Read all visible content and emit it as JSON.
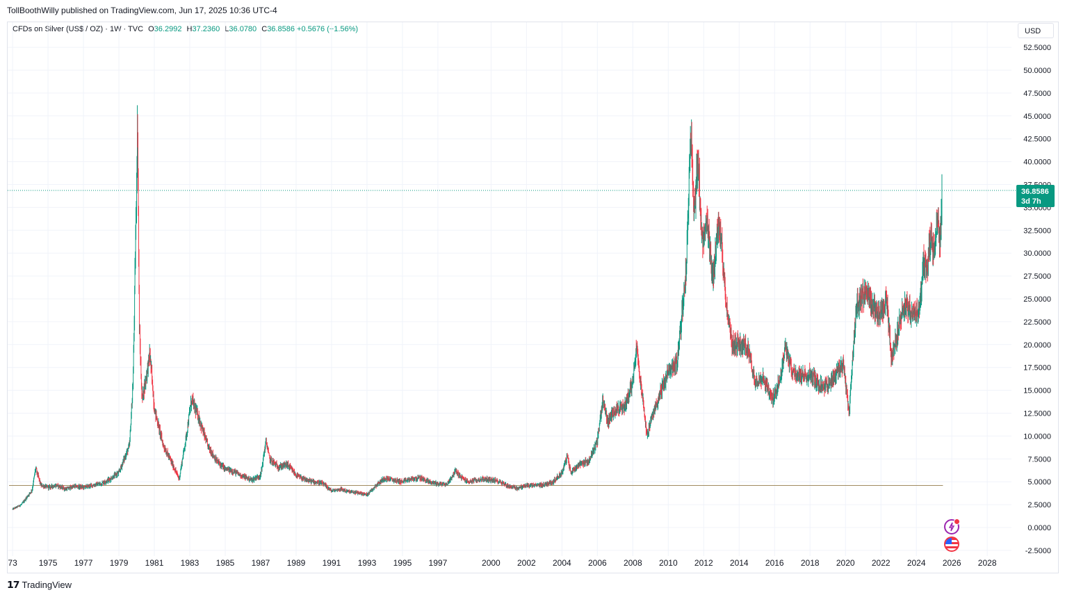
{
  "header": {
    "publisher": "TollBoothWilly published on TradingView.com, Jun 17, 2025 10:36 UTC-4"
  },
  "legend": {
    "symbol": "CFDs on Silver (US$ / OZ) · 1W · TVC",
    "open_label": "O",
    "open": "36.2992",
    "high_label": "H",
    "high": "37.2360",
    "low_label": "L",
    "low": "36.0780",
    "close_label": "C",
    "close": "36.8586",
    "change": "+0.5676 (+1.56%)"
  },
  "currency_button": "USD",
  "price_tag": {
    "price": "36.8586",
    "countdown": "3d 7h"
  },
  "footer": {
    "brand": "TradingView",
    "logo_icon": "tradingview-logo-icon"
  },
  "colors": {
    "up": "#089981",
    "down": "#f23645",
    "support": "#a08a60",
    "grid": "#f0f3fa"
  },
  "icons": [
    "lightning-event-icon",
    "us-flag-event-icon"
  ],
  "chart_data": {
    "type": "candlestick",
    "symbol": "CFDs on Silver (US$ / OZ)",
    "interval": "1W",
    "x_range": [
      1972.8,
      2028.7
    ],
    "ylim": [
      -3.2,
      54.0
    ],
    "y_ticks": [
      "52.5000",
      "50.0000",
      "47.5000",
      "45.0000",
      "42.5000",
      "40.0000",
      "37.5000",
      "35.0000",
      "32.5000",
      "30.0000",
      "27.5000",
      "25.0000",
      "22.5000",
      "20.0000",
      "17.5000",
      "15.0000",
      "12.5000",
      "10.0000",
      "7.5000",
      "5.0000",
      "2.5000",
      "0.0000",
      "-2.5000"
    ],
    "x_ticks": [
      "73",
      "1975",
      "1977",
      "1979",
      "1981",
      "1983",
      "1985",
      "1987",
      "1989",
      "1991",
      "1993",
      "1995",
      "1997",
      "2000",
      "2002",
      "2004",
      "2006",
      "2008",
      "2010",
      "2012",
      "2014",
      "2016",
      "2018",
      "2020",
      "2022",
      "2024",
      "2026",
      "2028"
    ],
    "current_price": 36.8586,
    "support_level": 4.6,
    "support_range": [
      1972.8,
      2025.5
    ],
    "grid": true,
    "price_series": [
      [
        1973.0,
        2.0
      ],
      [
        1973.5,
        2.5
      ],
      [
        1974.1,
        4.1
      ],
      [
        1974.3,
        6.5
      ],
      [
        1974.6,
        4.6
      ],
      [
        1975.0,
        4.4
      ],
      [
        1975.5,
        4.6
      ],
      [
        1976.0,
        4.2
      ],
      [
        1976.5,
        4.5
      ],
      [
        1977.0,
        4.4
      ],
      [
        1977.5,
        4.6
      ],
      [
        1978.0,
        4.8
      ],
      [
        1978.5,
        5.3
      ],
      [
        1979.0,
        6.0
      ],
      [
        1979.3,
        7.5
      ],
      [
        1979.6,
        9.0
      ],
      [
        1979.8,
        16.0
      ],
      [
        1980.0,
        38.0
      ],
      [
        1980.05,
        45.0
      ],
      [
        1980.15,
        22.0
      ],
      [
        1980.3,
        14.0
      ],
      [
        1980.5,
        16.0
      ],
      [
        1980.75,
        19.0
      ],
      [
        1981.0,
        13.0
      ],
      [
        1981.5,
        9.0
      ],
      [
        1982.0,
        7.0
      ],
      [
        1982.4,
        5.3
      ],
      [
        1982.8,
        10.0
      ],
      [
        1983.1,
        14.0
      ],
      [
        1983.5,
        12.0
      ],
      [
        1984.0,
        9.0
      ],
      [
        1984.5,
        7.3
      ],
      [
        1985.0,
        6.4
      ],
      [
        1985.5,
        6.1
      ],
      [
        1986.0,
        5.6
      ],
      [
        1986.5,
        5.2
      ],
      [
        1987.0,
        5.7
      ],
      [
        1987.3,
        9.5
      ],
      [
        1987.5,
        7.5
      ],
      [
        1988.0,
        6.6
      ],
      [
        1988.5,
        6.9
      ],
      [
        1989.0,
        5.7
      ],
      [
        1989.5,
        5.2
      ],
      [
        1990.0,
        5.0
      ],
      [
        1990.5,
        4.8
      ],
      [
        1991.0,
        4.0
      ],
      [
        1991.5,
        4.2
      ],
      [
        1992.0,
        3.9
      ],
      [
        1992.5,
        3.8
      ],
      [
        1993.0,
        3.6
      ],
      [
        1993.5,
        4.6
      ],
      [
        1994.0,
        5.4
      ],
      [
        1994.5,
        5.2
      ],
      [
        1995.0,
        5.0
      ],
      [
        1995.5,
        5.3
      ],
      [
        1996.0,
        5.4
      ],
      [
        1996.5,
        5.0
      ],
      [
        1997.0,
        4.8
      ],
      [
        1997.5,
        4.7
      ],
      [
        1998.0,
        6.2
      ],
      [
        1998.3,
        5.5
      ],
      [
        1998.7,
        5.0
      ],
      [
        1999.0,
        5.1
      ],
      [
        1999.5,
        5.3
      ],
      [
        2000.0,
        5.2
      ],
      [
        2000.5,
        5.0
      ],
      [
        2001.0,
        4.5
      ],
      [
        2001.5,
        4.3
      ],
      [
        2002.0,
        4.6
      ],
      [
        2002.5,
        4.6
      ],
      [
        2003.0,
        4.7
      ],
      [
        2003.5,
        5.0
      ],
      [
        2004.0,
        6.0
      ],
      [
        2004.3,
        7.8
      ],
      [
        2004.5,
        6.0
      ],
      [
        2005.0,
        7.0
      ],
      [
        2005.5,
        7.2
      ],
      [
        2006.0,
        9.5
      ],
      [
        2006.3,
        14.0
      ],
      [
        2006.6,
        11.5
      ],
      [
        2007.0,
        13.0
      ],
      [
        2007.5,
        13.0
      ],
      [
        2008.0,
        16.0
      ],
      [
        2008.2,
        20.0
      ],
      [
        2008.5,
        15.0
      ],
      [
        2008.8,
        10.0
      ],
      [
        2009.0,
        11.5
      ],
      [
        2009.5,
        14.5
      ],
      [
        2010.0,
        17.0
      ],
      [
        2010.5,
        18.0
      ],
      [
        2010.8,
        24.0
      ],
      [
        2011.0,
        28.0
      ],
      [
        2011.3,
        44.0
      ],
      [
        2011.45,
        35.0
      ],
      [
        2011.7,
        40.0
      ],
      [
        2011.9,
        31.0
      ],
      [
        2012.2,
        33.0
      ],
      [
        2012.5,
        27.0
      ],
      [
        2012.8,
        33.0
      ],
      [
        2013.0,
        31.0
      ],
      [
        2013.3,
        24.0
      ],
      [
        2013.6,
        20.0
      ],
      [
        2014.0,
        20.0
      ],
      [
        2014.5,
        19.5
      ],
      [
        2014.9,
        16.0
      ],
      [
        2015.3,
        16.5
      ],
      [
        2015.9,
        14.0
      ],
      [
        2016.4,
        17.0
      ],
      [
        2016.6,
        20.0
      ],
      [
        2017.0,
        17.0
      ],
      [
        2017.5,
        16.5
      ],
      [
        2018.0,
        16.8
      ],
      [
        2018.5,
        15.5
      ],
      [
        2019.0,
        15.5
      ],
      [
        2019.5,
        17.0
      ],
      [
        2019.9,
        17.8
      ],
      [
        2020.2,
        12.5
      ],
      [
        2020.6,
        24.0
      ],
      [
        2020.9,
        25.0
      ],
      [
        2021.2,
        26.0
      ],
      [
        2021.6,
        24.0
      ],
      [
        2022.0,
        23.0
      ],
      [
        2022.3,
        25.0
      ],
      [
        2022.6,
        18.5
      ],
      [
        2022.9,
        21.0
      ],
      [
        2023.1,
        23.0
      ],
      [
        2023.4,
        24.5
      ],
      [
        2023.8,
        23.0
      ],
      [
        2024.2,
        24.0
      ],
      [
        2024.4,
        29.0
      ],
      [
        2024.6,
        28.0
      ],
      [
        2024.8,
        32.0
      ],
      [
        2025.0,
        30.0
      ],
      [
        2025.2,
        33.5
      ],
      [
        2025.35,
        31.5
      ],
      [
        2025.45,
        36.86
      ]
    ]
  }
}
